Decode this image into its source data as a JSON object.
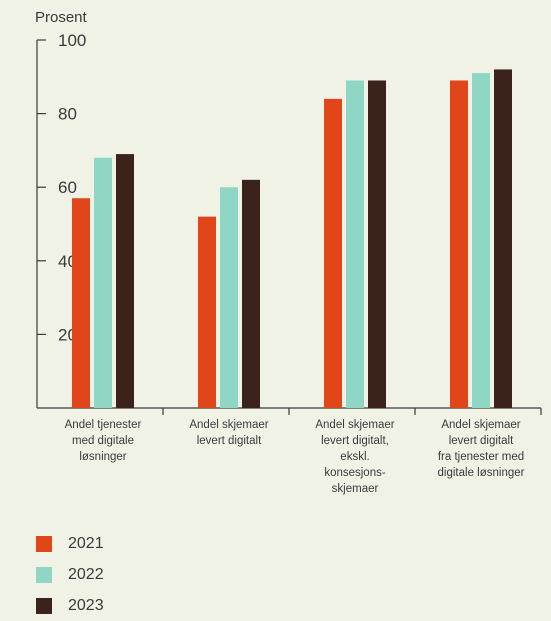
{
  "chart_data": {
    "type": "bar",
    "ylabel": "Prosent",
    "ylim": [
      0,
      100
    ],
    "yticks": [
      "20",
      "40",
      "60",
      "80",
      "100"
    ],
    "grid": false,
    "legend_position": "bottom-left",
    "categories": [
      [
        "Andel tjenester",
        "med digitale",
        "løsninger"
      ],
      [
        "Andel skjemaer",
        "levert digitalt"
      ],
      [
        "Andel skjemaer",
        "levert digitalt,",
        "ekskl.",
        "konsesjons-",
        "skjemaer"
      ],
      [
        "Andel skjemaer",
        "levert digitalt",
        "fra tjenester med",
        "digitale løsninger"
      ]
    ],
    "series": [
      {
        "name": "2021",
        "color": "#e0461a",
        "values": [
          57,
          52,
          84,
          89
        ]
      },
      {
        "name": "2022",
        "color": "#8fd6c4",
        "values": [
          68,
          60,
          89,
          91
        ]
      },
      {
        "name": "2023",
        "color": "#3b231c",
        "values": [
          69,
          62,
          89,
          92
        ]
      }
    ]
  }
}
